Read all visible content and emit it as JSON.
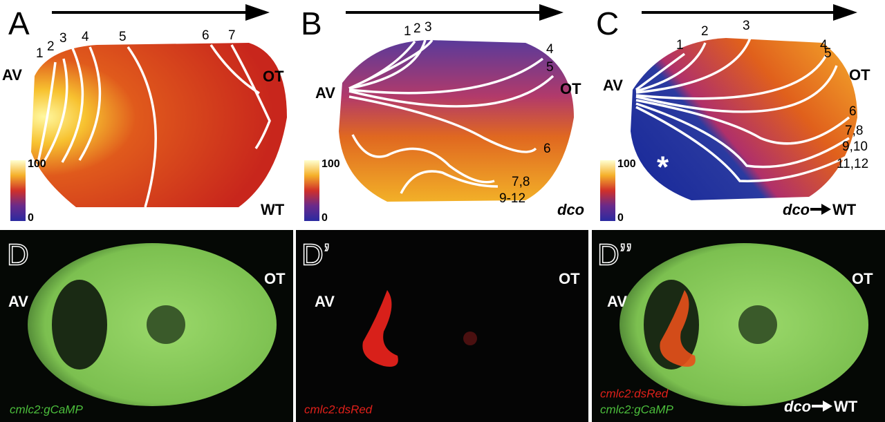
{
  "panels": [
    {
      "letter": "A",
      "av": "AV",
      "ot": "OT",
      "isochrones": [
        "1",
        "2",
        "3",
        "4",
        "5",
        "6",
        "7"
      ],
      "scale_max": "100",
      "scale_min": "0",
      "condition": "WT"
    },
    {
      "letter": "B",
      "av": "AV",
      "ot": "OT",
      "isochrones": [
        "1",
        "2",
        "3",
        "4",
        "5",
        "6",
        "7,8",
        "9-12"
      ],
      "scale_max": "100",
      "scale_min": "0",
      "condition": "dco"
    },
    {
      "letter": "C",
      "av": "AV",
      "ot": "OT",
      "isochrones": [
        "1",
        "2",
        "3",
        "4",
        "5",
        "6",
        "7,8",
        "9,10",
        "11,12"
      ],
      "scale_max": "100",
      "scale_min": "0",
      "marker": "*",
      "condition": {
        "from": "dco",
        "to": "WT"
      }
    },
    {
      "letter": "D",
      "av": "AV",
      "ot": "OT",
      "legend": [
        "cmlc2:gCaMP"
      ]
    },
    {
      "letter": "D’",
      "av": "AV",
      "ot": "OT",
      "legend": [
        "cmlc2:dsRed"
      ]
    },
    {
      "letter": "D’’",
      "av": "AV",
      "ot": "OT",
      "legend": [
        "cmlc2:dsRed",
        "cmlc2:gCaMP"
      ],
      "condition": {
        "from": "dco",
        "to": "WT"
      }
    }
  ]
}
